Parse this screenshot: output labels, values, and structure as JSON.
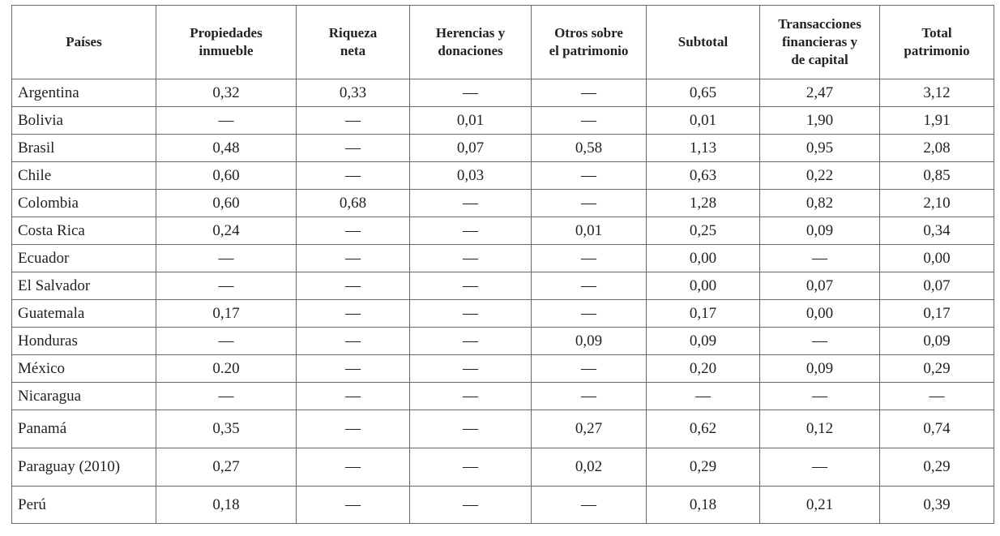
{
  "table": {
    "header": [
      [
        "Países"
      ],
      [
        "Propiedades",
        "inmueble"
      ],
      [
        "Riqueza",
        "neta"
      ],
      [
        "Herencias y",
        "donaciones"
      ],
      [
        "Otros sobre",
        "el patrimonio"
      ],
      [
        "Subtotal"
      ],
      [
        "Transacciones",
        "financieras y",
        "de capital"
      ],
      [
        "Total",
        "patrimonio"
      ]
    ],
    "rows": [
      [
        "Argentina",
        "0,32",
        "0,33",
        "—",
        "—",
        "0,65",
        "2,47",
        "3,12"
      ],
      [
        "Bolivia",
        "—",
        "—",
        "0,01",
        "—",
        "0,01",
        "1,90",
        "1,91"
      ],
      [
        "Brasil",
        "0,48",
        "—",
        "0,07",
        "0,58",
        "1,13",
        "0,95",
        "2,08"
      ],
      [
        "Chile",
        "0,60",
        "—",
        "0,03",
        "—",
        "0,63",
        "0,22",
        "0,85"
      ],
      [
        "Colombia",
        "0,60",
        "0,68",
        "—",
        "—",
        "1,28",
        "0,82",
        "2,10"
      ],
      [
        "Costa Rica",
        "0,24",
        "—",
        "—",
        "0,01",
        "0,25",
        "0,09",
        "0,34"
      ],
      [
        "Ecuador",
        "—",
        "—",
        "—",
        "—",
        "0,00",
        "—",
        "0,00"
      ],
      [
        "El Salvador",
        "—",
        "—",
        "—",
        "—",
        "0,00",
        "0,07",
        "0,07"
      ],
      [
        "Guatemala",
        "0,17",
        "—",
        "—",
        "—",
        "0,17",
        "0,00",
        "0,17"
      ],
      [
        "Honduras",
        "—",
        "—",
        "—",
        "0,09",
        "0,09",
        "—",
        "0,09"
      ],
      [
        "México",
        "0.20",
        "—",
        "—",
        "—",
        "0,20",
        "0,09",
        "0,29"
      ],
      [
        "Nicaragua",
        "—",
        "—",
        "—",
        "—",
        "—",
        "—",
        "—"
      ],
      [
        "Panamá",
        "0,35",
        "—",
        "—",
        "0,27",
        "0,62",
        "0,12",
        "0,74"
      ],
      [
        "Paraguay (2010)",
        "0,27",
        "—",
        "—",
        "0,02",
        "0,29",
        "—",
        "0,29"
      ],
      [
        "Perú",
        "0,18",
        "—",
        "—",
        "—",
        "0,18",
        "0,21",
        "0,39"
      ]
    ]
  }
}
